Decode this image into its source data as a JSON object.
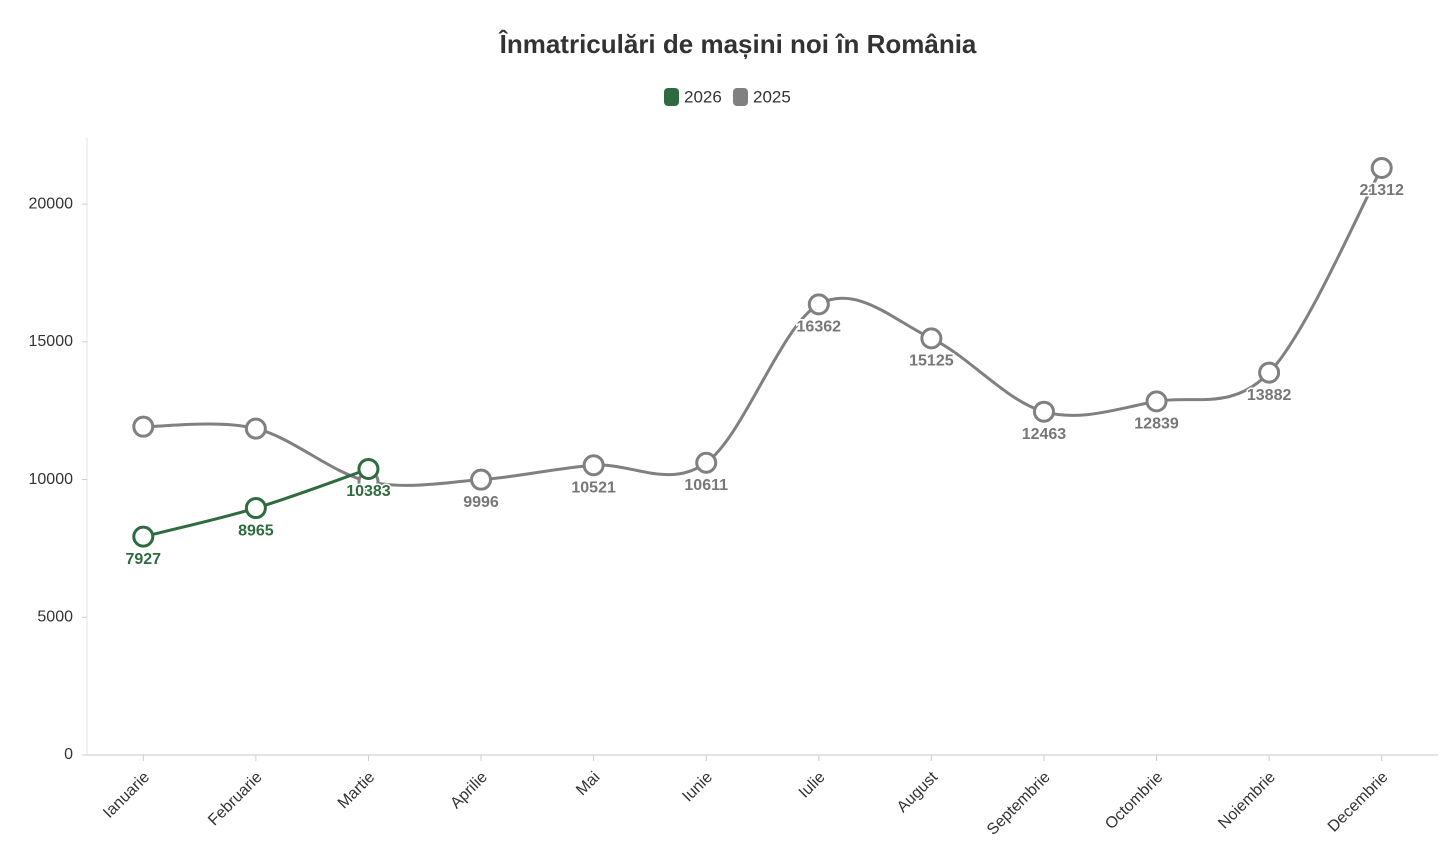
{
  "chart_data": {
    "type": "line",
    "title": "Înmatriculări de mașini noi în România",
    "categories": [
      "Ianuarie",
      "Februarie",
      "Martie",
      "Aprilie",
      "Mai",
      "Iunie",
      "Iulie",
      "August",
      "Septembrie",
      "Octombrie",
      "Noiembrie",
      "Decembrie"
    ],
    "series": [
      {
        "name": "2026",
        "color": "#2e6b3e",
        "values": [
          7927,
          8965,
          10383,
          null,
          null,
          null,
          null,
          null,
          null,
          null,
          null,
          null
        ]
      },
      {
        "name": "2025",
        "color": "#808080",
        "values": [
          11920,
          11850,
          9930,
          9996,
          10521,
          10611,
          16362,
          15125,
          12463,
          12839,
          13882,
          21312
        ]
      }
    ],
    "ylim": [
      0,
      22400
    ],
    "yticks": [
      0,
      5000,
      10000,
      15000,
      20000
    ],
    "legend": "top"
  }
}
